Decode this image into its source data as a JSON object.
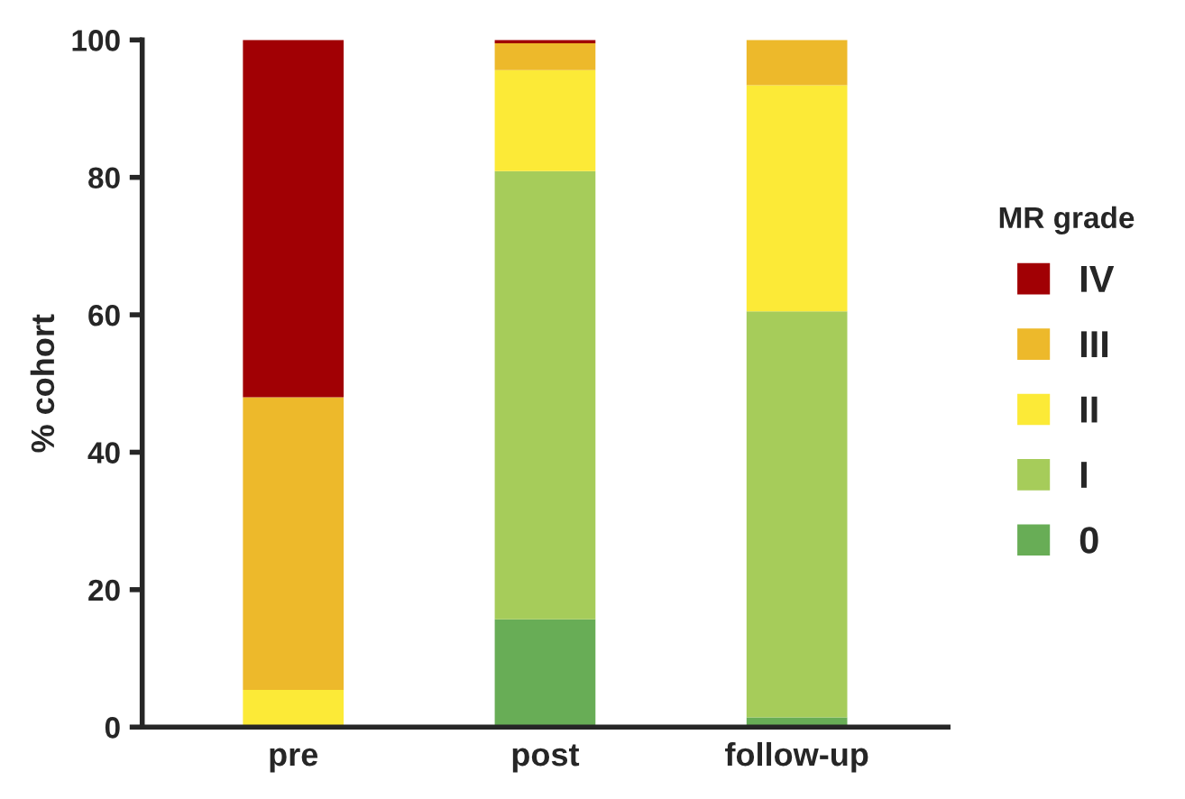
{
  "chart_data": {
    "type": "bar",
    "stacked": true,
    "ylabel": "% cohort",
    "legend_title": "MR grade",
    "legend": "right",
    "grid": false,
    "categories": [
      "pre",
      "post",
      "follow-up"
    ],
    "series": [
      {
        "name": "0",
        "color": "#68ad56",
        "values": [
          0,
          15.7,
          1.4
        ]
      },
      {
        "name": "I",
        "color": "#a6cc5a",
        "values": [
          0,
          65.2,
          59.1
        ]
      },
      {
        "name": "II",
        "color": "#fcea37",
        "values": [
          5.4,
          14.7,
          32.9
        ]
      },
      {
        "name": "III",
        "color": "#edb92b",
        "values": [
          42.6,
          3.9,
          6.6
        ]
      },
      {
        "name": "IV",
        "color": "#a10004",
        "values": [
          52,
          0.5,
          0
        ]
      }
    ],
    "ylim": [
      0,
      100
    ],
    "yticks": [
      0,
      20,
      40,
      60,
      80,
      100
    ]
  }
}
